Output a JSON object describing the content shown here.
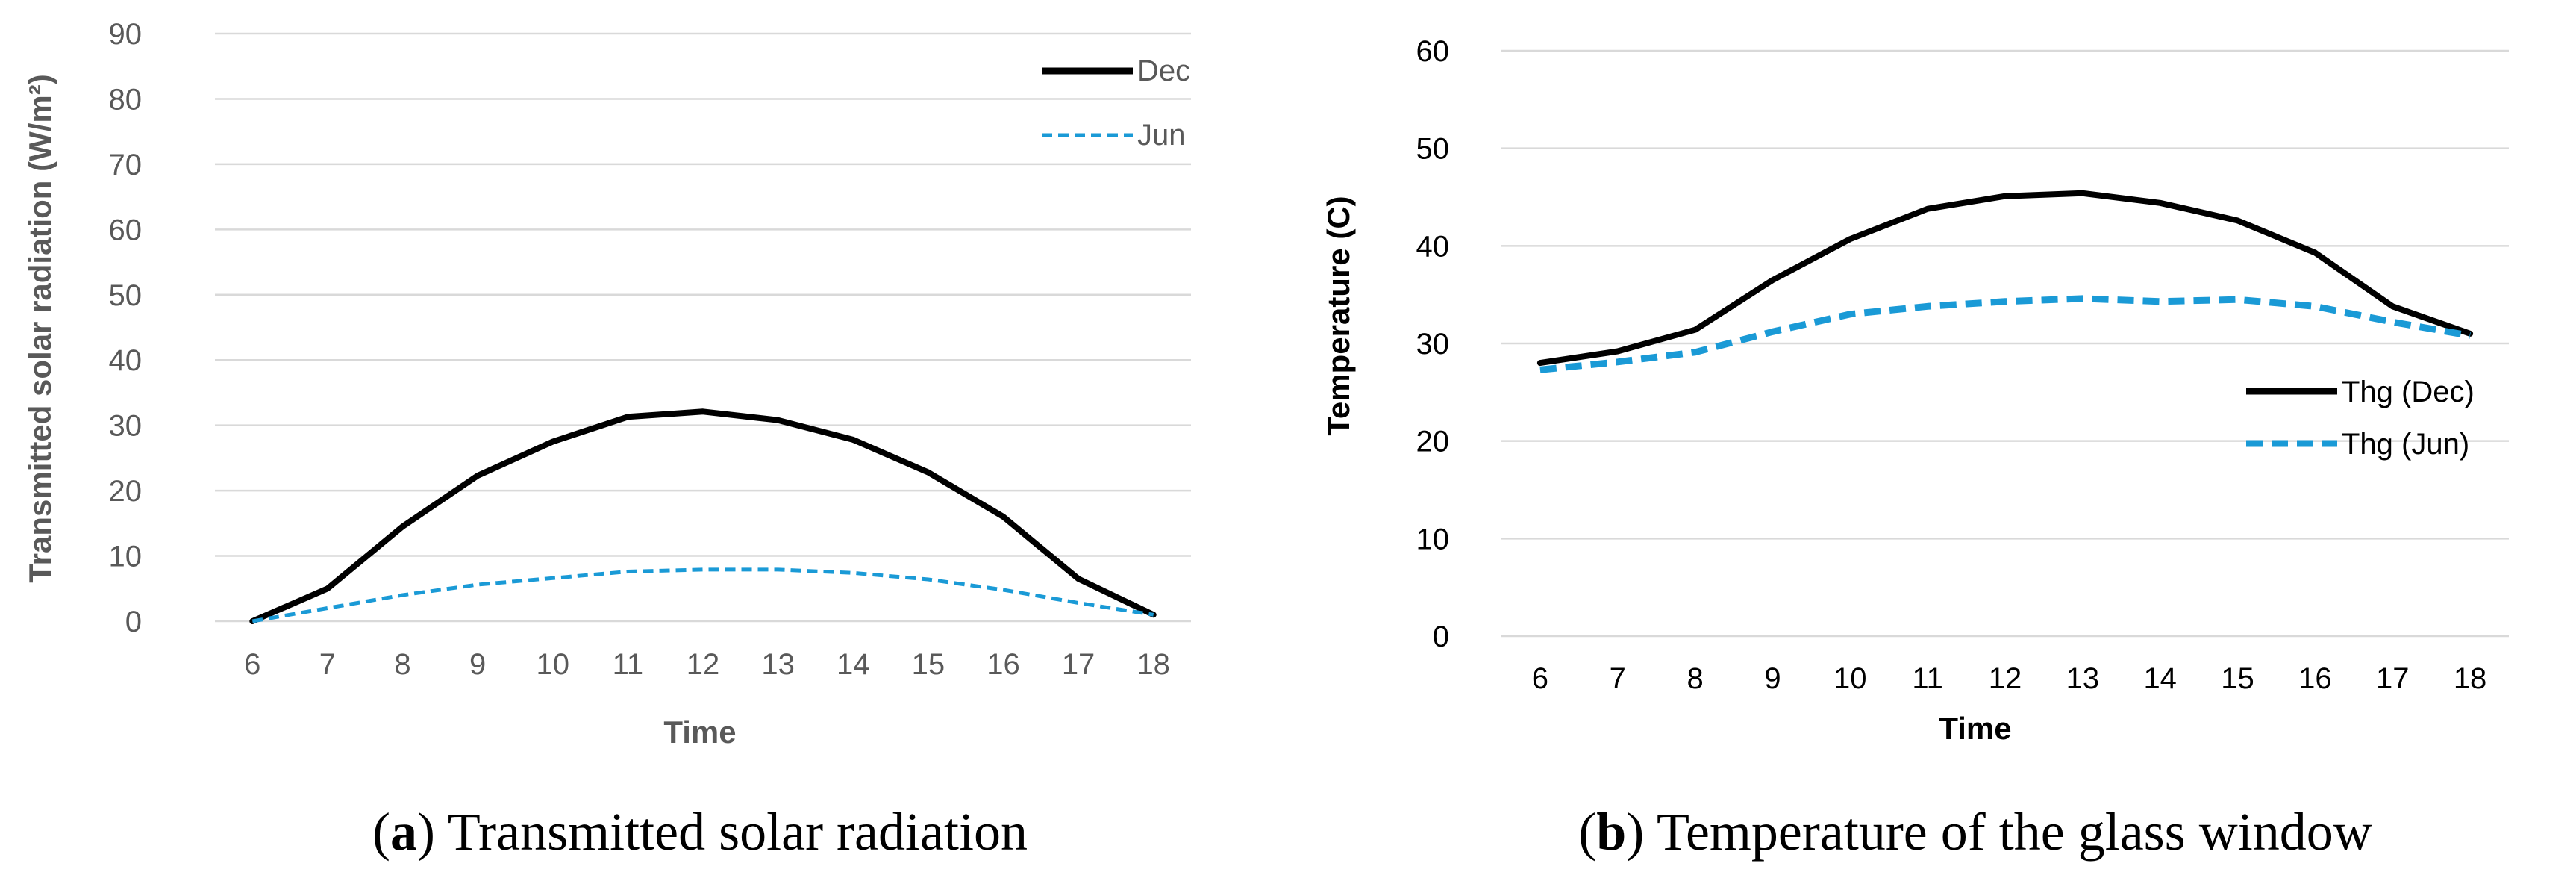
{
  "chart_data": [
    {
      "type": "line",
      "caption_letter": "a",
      "caption_text": "Transmitted solar radiation",
      "xlabel": "Time",
      "ylabel": "Transmitted solar radiation (W/m²)",
      "ylim": [
        0,
        90
      ],
      "ytick_step": 10,
      "x": [
        6,
        7,
        8,
        9,
        10,
        11,
        12,
        13,
        14,
        15,
        16,
        17,
        18
      ],
      "grid": true,
      "legend_position": "top-right",
      "series": [
        {
          "name": "Dec",
          "style": "solid",
          "color": "#000000",
          "values": [
            0,
            5,
            14.5,
            22.3,
            27.5,
            31.3,
            32.1,
            30.8,
            27.8,
            22.8,
            16,
            6.5,
            1
          ]
        },
        {
          "name": "Jun",
          "style": "dashed",
          "color": "#1a9ad6",
          "values": [
            0,
            2,
            4,
            5.6,
            6.6,
            7.6,
            7.9,
            7.9,
            7.4,
            6.4,
            4.8,
            2.8,
            1
          ]
        }
      ]
    },
    {
      "type": "line",
      "caption_letter": "b",
      "caption_text": "Temperature of the glass window",
      "xlabel": "Time",
      "ylabel": "Temperature (C)",
      "ylim": [
        0,
        60
      ],
      "ytick_step": 10,
      "x": [
        6,
        7,
        8,
        9,
        10,
        11,
        12,
        13,
        14,
        15,
        16,
        17,
        18
      ],
      "grid": true,
      "legend_position": "right",
      "series": [
        {
          "name": "Thg (Dec)",
          "style": "solid",
          "color": "#000000",
          "values": [
            28,
            29.2,
            31.4,
            36.5,
            40.7,
            43.8,
            45.1,
            45.4,
            44.4,
            42.6,
            39.3,
            33.8,
            31
          ]
        },
        {
          "name": "Thg (Jun)",
          "style": "dashed",
          "color": "#1a9ad6",
          "values": [
            27.3,
            28.1,
            29.1,
            31.2,
            33,
            33.8,
            34.3,
            34.6,
            34.3,
            34.5,
            33.8,
            32.2,
            30.8
          ]
        }
      ]
    }
  ]
}
